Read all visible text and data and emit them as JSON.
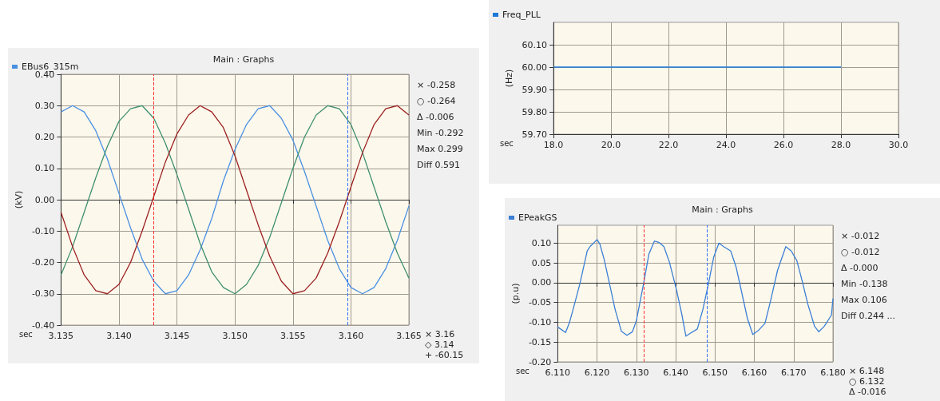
{
  "chart_data": [
    {
      "type": "line",
      "title": "Main : Graphs",
      "xlabel": "sec",
      "ylabel": "(kV)",
      "legend": "top left",
      "grid": true,
      "xlim": [
        3.135,
        3.165
      ],
      "xticks": [
        3.135,
        {
          "value": 3.14,
          "label": "3.140"
        },
        3.145,
        {
          "value": 3.15,
          "label": "3.150"
        },
        3.155,
        {
          "value": 3.16,
          "label": "3.160"
        },
        3.165
      ],
      "ylim": [
        -0.4,
        0.4
      ],
      "yticks": [
        {
          "value": -0.4,
          "label": "-0.40"
        },
        {
          "value": -0.3,
          "label": "-0.30"
        },
        {
          "value": -0.2,
          "label": "-0.20"
        },
        {
          "value": -0.1,
          "label": "-0.10"
        },
        {
          "value": 0,
          "label": "0.00"
        },
        {
          "value": 0.1,
          "label": "0.10"
        },
        {
          "value": 0.2,
          "label": "0.20"
        },
        {
          "value": 0.3,
          "label": "0.30"
        },
        {
          "value": 0.4,
          "label": "0.40"
        }
      ],
      "x": [
        3.135,
        3.136,
        3.137,
        3.138,
        3.139,
        3.14,
        3.141,
        3.142,
        3.143,
        3.144,
        3.145,
        3.146,
        3.147,
        3.148,
        3.149,
        3.15,
        3.151,
        3.152,
        3.153,
        3.154,
        3.155,
        3.156,
        3.157,
        3.158,
        3.159,
        3.16,
        3.161,
        3.162,
        3.163,
        3.164,
        3.165
      ],
      "series": [
        {
          "name": "EBus6_315m",
          "color": "#4a90e2",
          "values": [
            0.28,
            0.3,
            0.28,
            0.22,
            0.13,
            0.02,
            -0.09,
            -0.19,
            -0.26,
            -0.3,
            -0.29,
            -0.24,
            -0.16,
            -0.06,
            0.06,
            0.16,
            0.24,
            0.29,
            0.3,
            0.26,
            0.19,
            0.09,
            -0.02,
            -0.13,
            -0.22,
            -0.28,
            -0.3,
            -0.28,
            -0.22,
            -0.13,
            -0.02
          ]
        },
        {
          "color": "#3f8f6f",
          "values": [
            -0.24,
            -0.15,
            -0.04,
            0.07,
            0.17,
            0.25,
            0.29,
            0.3,
            0.26,
            0.18,
            0.08,
            -0.03,
            -0.14,
            -0.23,
            -0.28,
            -0.3,
            -0.27,
            -0.21,
            -0.12,
            -0.01,
            0.1,
            0.2,
            0.27,
            0.3,
            0.29,
            0.24,
            0.15,
            0.04,
            -0.07,
            -0.17,
            -0.25
          ]
        },
        {
          "color": "#9b2020",
          "values": [
            -0.04,
            -0.15,
            -0.24,
            -0.29,
            -0.3,
            -0.27,
            -0.2,
            -0.1,
            0.01,
            0.12,
            0.21,
            0.27,
            0.3,
            0.28,
            0.23,
            0.14,
            0.03,
            -0.08,
            -0.18,
            -0.26,
            -0.3,
            -0.29,
            -0.25,
            -0.17,
            -0.07,
            0.04,
            0.15,
            0.24,
            0.29,
            0.3,
            0.27
          ]
        }
      ],
      "ref_lines": [
        {
          "axis": "x",
          "value": 3.143,
          "color": "#ff3030",
          "line_style": "dashed"
        },
        {
          "axis": "x",
          "value": 3.1597,
          "color": "#3070ff",
          "line_style": "dashed"
        }
      ],
      "annotations": [
        "× -0.258",
        "○ -0.264",
        "Δ -0.006",
        "Min -0.292",
        "Max 0.299",
        "Diff 0.591",
        "× 3.16",
        "◇ 3.14",
        "+ -60.15"
      ]
    },
    {
      "type": "line",
      "xlabel": "sec",
      "ylabel": "(Hz)",
      "legend": "top left",
      "grid": true,
      "xlim": [
        18,
        30
      ],
      "xticks": [
        {
          "value": 18,
          "label": "18.0"
        },
        {
          "value": 20,
          "label": "20.0"
        },
        {
          "value": 22,
          "label": "22.0"
        },
        {
          "value": 24,
          "label": "24.0"
        },
        {
          "value": 26,
          "label": "26.0"
        },
        {
          "value": 28,
          "label": "28.0"
        },
        {
          "value": 30,
          "label": "30.0"
        }
      ],
      "ylim": [
        59.7,
        60.2
      ],
      "yticks": [
        {
          "value": 59.7,
          "label": "59.70"
        },
        {
          "value": 59.8,
          "label": "59.80"
        },
        {
          "value": 59.9,
          "label": "59.90"
        },
        {
          "value": 60,
          "label": "60.00"
        },
        {
          "value": 60.1,
          "label": "60.10"
        }
      ],
      "x": [
        18,
        20,
        22,
        24,
        26,
        28
      ],
      "series": [
        {
          "name": "Freq_PLL",
          "color": "#1f78d8",
          "values": [
            60,
            60,
            60,
            60,
            60,
            60
          ]
        }
      ]
    },
    {
      "type": "line",
      "title": "Main : Graphs",
      "xlabel": "sec",
      "ylabel": "(p.u)",
      "legend": "top left",
      "grid": true,
      "xlim": [
        6.11,
        6.18
      ],
      "xticks": [
        {
          "value": 6.11,
          "label": "6.110"
        },
        {
          "value": 6.12,
          "label": "6.120"
        },
        {
          "value": 6.13,
          "label": "6.130"
        },
        {
          "value": 6.14,
          "label": "6.140"
        },
        {
          "value": 6.15,
          "label": "6.150"
        },
        {
          "value": 6.16,
          "label": "6.160"
        },
        {
          "value": 6.17,
          "label": "6.170"
        },
        {
          "value": 6.18,
          "label": "6.180"
        }
      ],
      "ylim": [
        -0.2,
        0.145
      ],
      "yticks": [
        {
          "value": -0.2,
          "label": "-0.20"
        },
        {
          "value": -0.15,
          "label": "-0.15"
        },
        {
          "value": -0.1,
          "label": "-0.10"
        },
        {
          "value": -0.05,
          "label": "-0.05"
        },
        {
          "value": 0,
          "label": "0.00"
        },
        {
          "value": 0.05,
          "label": "0.05"
        },
        {
          "value": 0.1,
          "label": "0.10"
        }
      ],
      "series": [
        {
          "name": "EPeakGS",
          "color": "#3a7fd5",
          "x": [
            6.11,
            6.112,
            6.113,
            6.114,
            6.1156,
            6.1175,
            6.1182,
            6.12,
            6.1207,
            6.1218,
            6.1232,
            6.1246,
            6.1262,
            6.1276,
            6.129,
            6.13,
            6.1318,
            6.1332,
            6.1346,
            6.1357,
            6.137,
            6.1384,
            6.1402,
            6.1416,
            6.1426,
            6.1437,
            6.1455,
            6.1469,
            6.1483,
            6.1497,
            6.151,
            6.1522,
            6.154,
            6.1554,
            6.1568,
            6.1582,
            6.1596,
            6.161,
            6.1627,
            6.1641,
            6.1659,
            6.168,
            6.1694,
            6.1708,
            6.1722,
            6.1736,
            6.1753,
            6.1764,
            6.1778,
            6.1796,
            6.18
          ],
          "values": [
            -0.112,
            -0.126,
            -0.1,
            -0.064,
            -0.004,
            0.08,
            0.091,
            0.109,
            0.098,
            0.059,
            -0.004,
            -0.068,
            -0.123,
            -0.133,
            -0.124,
            -0.096,
            -0.004,
            0.073,
            0.105,
            0.102,
            0.091,
            0.052,
            -0.018,
            -0.082,
            -0.135,
            -0.128,
            -0.117,
            -0.068,
            -0.004,
            0.066,
            0.1,
            0.091,
            0.08,
            0.038,
            -0.025,
            -0.089,
            -0.131,
            -0.121,
            -0.103,
            -0.047,
            0.031,
            0.091,
            0.08,
            0.056,
            0.003,
            -0.054,
            -0.11,
            -0.124,
            -0.11,
            -0.082,
            -0.04
          ]
        }
      ],
      "ref_lines": [
        {
          "axis": "x",
          "value": 6.132,
          "color": "#ff3030",
          "line_style": "dashed"
        },
        {
          "axis": "x",
          "value": 6.148,
          "color": "#3070ff",
          "line_style": "dashed"
        }
      ],
      "annotations": [
        "× -0.012",
        "○ -0.012",
        "Δ -0.000",
        "Min -0.138",
        "Max 0.106",
        "Diff 0.244 ...",
        "× 6.148",
        "○ 6.132",
        "Δ -0.016"
      ]
    }
  ]
}
